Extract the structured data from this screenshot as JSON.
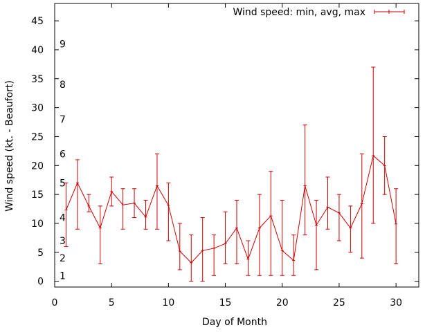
{
  "chart_data": {
    "type": "line",
    "title": "",
    "xlabel": "Day of Month",
    "ylabel": "Wind speed (kt. - Beaufort)",
    "xlim": [
      0,
      32
    ],
    "ylim": [
      -1,
      48
    ],
    "x_ticks": [
      0,
      5,
      10,
      15,
      20,
      25,
      30
    ],
    "y_ticks": [
      0,
      5,
      10,
      15,
      20,
      25,
      30,
      35,
      40,
      45
    ],
    "legend": {
      "label": "Wind speed: min, avg, max",
      "position": "top-right"
    },
    "color": "#cc0000",
    "beaufort_labels": [
      {
        "label": "1",
        "value": 1
      },
      {
        "label": "2",
        "value": 4
      },
      {
        "label": "3",
        "value": 7
      },
      {
        "label": "4",
        "value": 11
      },
      {
        "label": "5",
        "value": 17
      },
      {
        "label": "6",
        "value": 22
      },
      {
        "label": "7",
        "value": 28
      },
      {
        "label": "8",
        "value": 34
      },
      {
        "label": "9",
        "value": 41
      }
    ],
    "series": [
      {
        "name": "Wind speed: min, avg, max",
        "points": [
          {
            "x": 1,
            "avg": 12.3,
            "min": 6,
            "max": 17
          },
          {
            "x": 2,
            "avg": 17,
            "min": 9,
            "max": 21
          },
          {
            "x": 3,
            "avg": 13,
            "min": 12,
            "max": 15
          },
          {
            "x": 4,
            "avg": 9.2,
            "min": 3,
            "max": 13
          },
          {
            "x": 5,
            "avg": 15.5,
            "min": 13,
            "max": 18
          },
          {
            "x": 6,
            "avg": 13.2,
            "min": 9,
            "max": 16
          },
          {
            "x": 7,
            "avg": 13.5,
            "min": 11,
            "max": 16
          },
          {
            "x": 8,
            "avg": 11.1,
            "min": 9,
            "max": 14
          },
          {
            "x": 9,
            "avg": 16.5,
            "min": 9,
            "max": 22
          },
          {
            "x": 10,
            "avg": 13.1,
            "min": 7,
            "max": 17
          },
          {
            "x": 11,
            "avg": 5.2,
            "min": 2,
            "max": 10
          },
          {
            "x": 12,
            "avg": 3.2,
            "min": 0,
            "max": 8
          },
          {
            "x": 13,
            "avg": 5.3,
            "min": 0,
            "max": 11
          },
          {
            "x": 14,
            "avg": 5.7,
            "min": 1,
            "max": 8
          },
          {
            "x": 15,
            "avg": 6.5,
            "min": 3,
            "max": 12
          },
          {
            "x": 16,
            "avg": 9.2,
            "min": 3,
            "max": 14
          },
          {
            "x": 17,
            "avg": 3.8,
            "min": 1,
            "max": 7
          },
          {
            "x": 18,
            "avg": 9.2,
            "min": 1,
            "max": 15
          },
          {
            "x": 19,
            "avg": 11.3,
            "min": 1,
            "max": 19
          },
          {
            "x": 20,
            "avg": 5.3,
            "min": 1,
            "max": 14
          },
          {
            "x": 21,
            "avg": 3.6,
            "min": 1,
            "max": 8
          },
          {
            "x": 22,
            "avg": 16.5,
            "min": 8,
            "max": 27
          },
          {
            "x": 23,
            "avg": 9.7,
            "min": 2,
            "max": 14
          },
          {
            "x": 24,
            "avg": 12.8,
            "min": 9,
            "max": 18
          },
          {
            "x": 25,
            "avg": 11.8,
            "min": 7,
            "max": 15
          },
          {
            "x": 26,
            "avg": 9.2,
            "min": 5,
            "max": 13
          },
          {
            "x": 27,
            "avg": 13.4,
            "min": 4,
            "max": 22
          },
          {
            "x": 28,
            "avg": 21.7,
            "min": 10,
            "max": 37
          },
          {
            "x": 29,
            "avg": 20,
            "min": 15,
            "max": 25
          },
          {
            "x": 30,
            "avg": 9.9,
            "min": 3,
            "max": 16
          }
        ]
      }
    ]
  }
}
